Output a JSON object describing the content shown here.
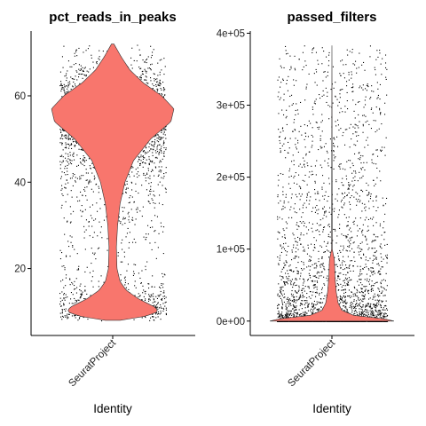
{
  "chart_data": [
    {
      "type": "violin",
      "title": "pct_reads_in_peaks",
      "xlabel": "Identity",
      "ylabel": "",
      "categories": [
        "SeuratProject"
      ],
      "yticks": [
        20,
        40,
        60
      ],
      "ylim": [
        4.5,
        75
      ],
      "color": "#F8766D",
      "distribution": {
        "min": 8,
        "max": 72,
        "density_profile": [
          {
            "y": 8,
            "w": 0.12
          },
          {
            "y": 9,
            "w": 0.55
          },
          {
            "y": 10,
            "w": 0.74
          },
          {
            "y": 11,
            "w": 0.7
          },
          {
            "y": 13,
            "w": 0.42
          },
          {
            "y": 15,
            "w": 0.22
          },
          {
            "y": 17,
            "w": 0.12
          },
          {
            "y": 20,
            "w": 0.07
          },
          {
            "y": 25,
            "w": 0.06
          },
          {
            "y": 30,
            "w": 0.08
          },
          {
            "y": 35,
            "w": 0.12
          },
          {
            "y": 40,
            "w": 0.2
          },
          {
            "y": 45,
            "w": 0.34
          },
          {
            "y": 50,
            "w": 0.62
          },
          {
            "y": 54,
            "w": 0.95
          },
          {
            "y": 57,
            "w": 1.0
          },
          {
            "y": 60,
            "w": 0.8
          },
          {
            "y": 63,
            "w": 0.5
          },
          {
            "y": 66,
            "w": 0.28
          },
          {
            "y": 69,
            "w": 0.14
          },
          {
            "y": 72,
            "w": 0.02
          }
        ]
      }
    },
    {
      "type": "violin",
      "title": "passed_filters",
      "xlabel": "Identity",
      "ylabel": "",
      "categories": [
        "SeuratProject"
      ],
      "yticks": [
        0,
        100000,
        200000,
        300000,
        400000
      ],
      "ytick_labels": [
        "0e+00",
        "1e+05",
        "2e+05",
        "3e+05",
        "4e+05"
      ],
      "ylim": [
        -20000,
        403000
      ],
      "color": "#F8766D",
      "distribution": {
        "min": 0,
        "max": 383000,
        "density_profile": [
          {
            "y": 0,
            "w": 1.0
          },
          {
            "y": 3000,
            "w": 0.85
          },
          {
            "y": 8000,
            "w": 0.35
          },
          {
            "y": 15000,
            "w": 0.16
          },
          {
            "y": 25000,
            "w": 0.1
          },
          {
            "y": 40000,
            "w": 0.07
          },
          {
            "y": 60000,
            "w": 0.05
          },
          {
            "y": 85000,
            "w": 0.04
          },
          {
            "y": 100000,
            "w": 0.005
          },
          {
            "y": 383000,
            "w": 0.0
          }
        ]
      }
    }
  ]
}
